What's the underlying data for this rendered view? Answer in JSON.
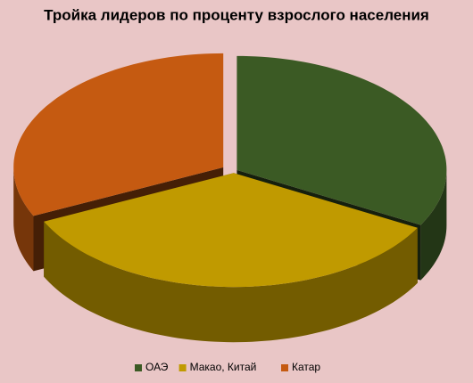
{
  "chart_data": {
    "type": "pie",
    "title": "Тройка лидеров по проценту взрослого населения",
    "categories": [
      "ОАЭ",
      "Макао, Китай",
      "Катар"
    ],
    "values": [
      33,
      35,
      32
    ],
    "colors": [
      "#3b5a24",
      "#c09a00",
      "#c55a11"
    ]
  }
}
